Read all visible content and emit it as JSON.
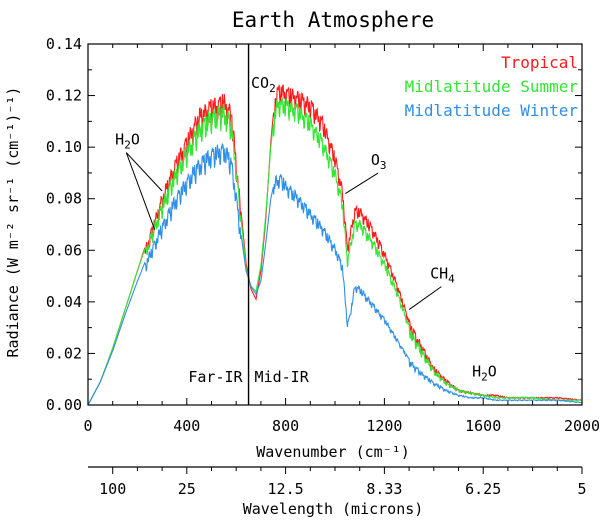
{
  "chart_data": {
    "type": "line",
    "title": "Earth Atmosphere",
    "xlabel": "Wavenumber (cm⁻¹)",
    "ylabel": "Radiance (W m⁻² sr⁻¹ (cm⁻¹)⁻¹)",
    "xlim": [
      0,
      2000
    ],
    "ylim": [
      0,
      0.14
    ],
    "x_ticks": [
      "0",
      "400",
      "800",
      "1200",
      "1600",
      "2000"
    ],
    "y_ticks": [
      "0.00",
      "0.02",
      "0.04",
      "0.06",
      "0.08",
      "0.10",
      "0.12",
      "0.14"
    ],
    "secondary_x_axis": {
      "label": "Wavelength (microns)",
      "ticks": [
        {
          "label": "100",
          "wavenumber": 100
        },
        {
          "label": "25",
          "wavenumber": 400
        },
        {
          "label": "12.5",
          "wavenumber": 800
        },
        {
          "label": "8.33",
          "wavenumber": 1200
        },
        {
          "label": "6.25",
          "wavenumber": 1600
        },
        {
          "label": "5",
          "wavenumber": 2000
        }
      ]
    },
    "divider": {
      "wavenumber": 650,
      "left_label": "Far-IR",
      "right_label": "Mid-IR"
    },
    "legend_placement": "top-right",
    "series": [
      {
        "name": "Tropical",
        "color": "#ff1a1a",
        "x": [
          0,
          50,
          100,
          150,
          200,
          250,
          300,
          350,
          400,
          450,
          500,
          550,
          580,
          600,
          620,
          640,
          660,
          680,
          700,
          720,
          740,
          760,
          780,
          800,
          850,
          900,
          950,
          1000,
          1030,
          1050,
          1060,
          1080,
          1100,
          1150,
          1200,
          1250,
          1300,
          1350,
          1400,
          1450,
          1500,
          1550,
          1600,
          1650,
          1700,
          1800,
          1900,
          2000
        ],
        "y": [
          0.0,
          0.009,
          0.022,
          0.037,
          0.052,
          0.067,
          0.082,
          0.095,
          0.105,
          0.115,
          0.119,
          0.121,
          0.116,
          0.097,
          0.075,
          0.055,
          0.045,
          0.041,
          0.052,
          0.072,
          0.102,
          0.123,
          0.125,
          0.124,
          0.122,
          0.119,
          0.112,
          0.098,
          0.085,
          0.062,
          0.067,
          0.077,
          0.077,
          0.07,
          0.06,
          0.048,
          0.033,
          0.024,
          0.015,
          0.01,
          0.006,
          0.005,
          0.004,
          0.004,
          0.003,
          0.003,
          0.003,
          0.002
        ]
      },
      {
        "name": "Midlatitude Summer",
        "color": "#33e633",
        "x": [
          0,
          50,
          100,
          150,
          200,
          250,
          300,
          350,
          400,
          450,
          500,
          550,
          580,
          600,
          620,
          640,
          660,
          680,
          700,
          720,
          740,
          760,
          780,
          800,
          850,
          900,
          950,
          1000,
          1030,
          1050,
          1060,
          1080,
          1100,
          1150,
          1200,
          1250,
          1300,
          1350,
          1400,
          1450,
          1500,
          1550,
          1600,
          1650,
          1700,
          1800,
          1900,
          2000
        ],
        "y": [
          0.0,
          0.009,
          0.022,
          0.037,
          0.052,
          0.066,
          0.079,
          0.091,
          0.101,
          0.11,
          0.115,
          0.117,
          0.112,
          0.094,
          0.072,
          0.053,
          0.046,
          0.044,
          0.054,
          0.074,
          0.1,
          0.118,
          0.12,
          0.119,
          0.117,
          0.112,
          0.104,
          0.092,
          0.08,
          0.057,
          0.062,
          0.072,
          0.072,
          0.065,
          0.056,
          0.045,
          0.031,
          0.022,
          0.014,
          0.009,
          0.006,
          0.005,
          0.004,
          0.003,
          0.003,
          0.003,
          0.002,
          0.002
        ]
      },
      {
        "name": "Midlatitude Winter",
        "color": "#2f8fe6",
        "x": [
          0,
          50,
          100,
          150,
          200,
          250,
          300,
          350,
          400,
          450,
          500,
          550,
          580,
          600,
          620,
          640,
          660,
          680,
          700,
          720,
          740,
          760,
          780,
          800,
          850,
          900,
          950,
          1000,
          1030,
          1050,
          1060,
          1080,
          1100,
          1150,
          1200,
          1250,
          1300,
          1350,
          1400,
          1450,
          1500,
          1550,
          1600,
          1650,
          1700,
          1800,
          1900,
          2000
        ],
        "y": [
          0.0,
          0.009,
          0.021,
          0.035,
          0.048,
          0.06,
          0.071,
          0.081,
          0.089,
          0.096,
          0.1,
          0.102,
          0.097,
          0.083,
          0.066,
          0.052,
          0.046,
          0.043,
          0.048,
          0.063,
          0.08,
          0.089,
          0.09,
          0.087,
          0.082,
          0.076,
          0.07,
          0.062,
          0.055,
          0.032,
          0.035,
          0.047,
          0.046,
          0.04,
          0.034,
          0.026,
          0.018,
          0.013,
          0.009,
          0.006,
          0.004,
          0.003,
          0.003,
          0.002,
          0.002,
          0.002,
          0.002,
          0.001
        ]
      }
    ],
    "annotations": [
      {
        "id": "h2o-left",
        "text": "H",
        "sub": "2",
        "tail": "O",
        "x": 110,
        "y": 0.101,
        "arrows_to": [
          [
            300,
            0.083
          ],
          [
            270,
            0.068
          ]
        ]
      },
      {
        "id": "co2",
        "text": "CO",
        "sub": "2",
        "tail": "",
        "x": 660,
        "y": 0.123,
        "arrows_to": []
      },
      {
        "id": "o3",
        "text": "O",
        "sub": "3",
        "tail": "",
        "x": 1145,
        "y": 0.093,
        "arrows_to": [
          [
            1042,
            0.082
          ]
        ]
      },
      {
        "id": "ch4",
        "text": "CH",
        "sub": "4",
        "tail": "",
        "x": 1385,
        "y": 0.049,
        "arrows_to": [
          [
            1300,
            0.037
          ]
        ]
      },
      {
        "id": "h2o-right",
        "text": "H",
        "sub": "2",
        "tail": "O",
        "x": 1555,
        "y": 0.011,
        "arrows_to": []
      }
    ]
  }
}
